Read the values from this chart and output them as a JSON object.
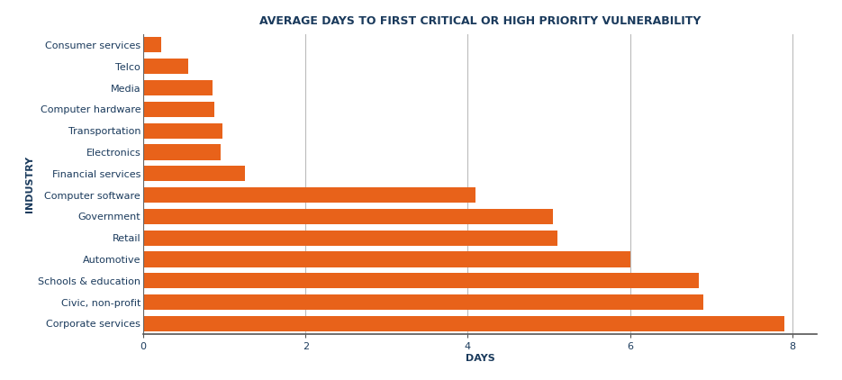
{
  "title": "AVERAGE DAYS TO FIRST CRITICAL OR HIGH PRIORITY VULNERABILITY",
  "xlabel": "DAYS",
  "ylabel": "INDUSTRY",
  "categories": [
    "Corporate services",
    "Civic, non-profit",
    "Schools & education",
    "Automotive",
    "Retail",
    "Government",
    "Computer software",
    "Financial services",
    "Electronics",
    "Transportation",
    "Computer hardware",
    "Media",
    "Telco",
    "Consumer services"
  ],
  "values": [
    7.9,
    6.9,
    6.85,
    6.0,
    5.1,
    5.05,
    4.1,
    1.25,
    0.95,
    0.98,
    0.88,
    0.85,
    0.55,
    0.22
  ],
  "bar_color": "#E8621A",
  "background_color": "#ffffff",
  "grid_color": "#bbbbbb",
  "axis_label_color": "#1a3a5c",
  "title_color": "#1a3a5c",
  "tick_label_color": "#1a3a5c",
  "xlim": [
    0,
    8.3
  ],
  "xticks": [
    0,
    2,
    4,
    6,
    8
  ],
  "title_fontsize": 9,
  "axis_label_fontsize": 8,
  "tick_fontsize": 8,
  "bar_height": 0.72
}
